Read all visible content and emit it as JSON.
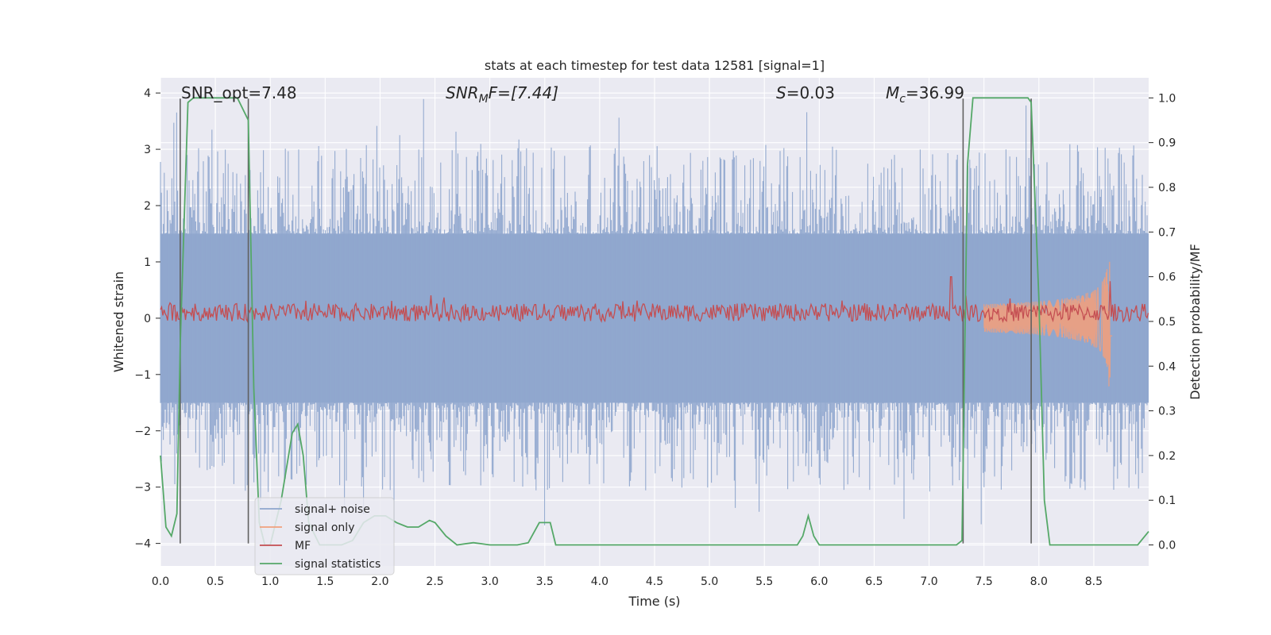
{
  "chart_data": {
    "type": "line",
    "title": "stats at each timestep for test data 12581 [signal=1]",
    "xlabel": "Time (s)",
    "ylabel": "Whitened strain",
    "y2label": "Detection probability/MF",
    "xlim": [
      0.0,
      9.0
    ],
    "ylim": [
      -4.4,
      4.27
    ],
    "y2lim": [
      -0.047,
      1.045
    ],
    "xticks": [
      "0.0",
      "0.5",
      "1.0",
      "1.5",
      "2.0",
      "2.5",
      "3.0",
      "3.5",
      "4.0",
      "4.5",
      "5.0",
      "5.5",
      "6.0",
      "6.5",
      "7.0",
      "7.5",
      "8.0",
      "8.5"
    ],
    "yticks": [
      "4",
      "3",
      "2",
      "1",
      "0",
      "−1",
      "−2",
      "−3",
      "−4"
    ],
    "y2ticks": [
      "1.0",
      "0.9",
      "0.8",
      "0.7",
      "0.6",
      "0.5",
      "0.4",
      "0.3",
      "0.2",
      "0.1",
      "0.0"
    ],
    "grid": true,
    "legend_position": "lower-left",
    "annotations": {
      "snr_opt": "SNR_opt=7.48",
      "snr_mf_main": "SNR",
      "snr_mf_sub": "M",
      "snr_mf_rest": "F=[7.44]",
      "s_main": "S",
      "s_rest": "=0.03",
      "mc_main": "M",
      "mc_sub": "c",
      "mc_rest": "=36.99"
    },
    "vertical_lines_x": [
      0.18,
      0.8,
      7.31,
      7.93
    ],
    "series": [
      {
        "name": "signal+ noise",
        "color": "#8fa6ce",
        "description_axis": "left",
        "noise_band": [
          -1.5,
          1.5
        ],
        "spike_extremes": [
          4.0,
          -4.0
        ]
      },
      {
        "name": "signal only",
        "color": "#f0a07e",
        "description_axis": "left",
        "chirp_peak_time": 8.65,
        "chirp_peak_amplitude": 1.8
      },
      {
        "name": "MF",
        "color": "#c44e52",
        "description_axis": "right",
        "baseline": 0.52,
        "spikes": [
          [
            7.2,
            0.6
          ],
          [
            8.65,
            0.59
          ]
        ]
      },
      {
        "name": "signal statistics",
        "color": "#55a868",
        "description_axis": "right",
        "x": [
          0.0,
          0.05,
          0.1,
          0.15,
          0.18,
          0.25,
          0.3,
          0.35,
          0.5,
          0.6,
          0.7,
          0.8,
          0.85,
          0.9,
          0.95,
          1.0,
          1.1,
          1.2,
          1.25,
          1.3,
          1.35,
          1.45,
          1.55,
          1.65,
          1.75,
          1.85,
          1.95,
          2.05,
          2.15,
          2.25,
          2.35,
          2.45,
          2.5,
          2.6,
          2.7,
          2.85,
          3.0,
          3.15,
          3.25,
          3.35,
          3.45,
          3.55,
          3.6,
          3.8,
          4.5,
          5.0,
          5.5,
          5.8,
          5.85,
          5.9,
          5.95,
          6.0,
          6.5,
          7.0,
          7.25,
          7.3,
          7.35,
          7.4,
          7.6,
          7.8,
          7.9,
          7.93,
          8.0,
          8.05,
          8.1,
          8.2,
          8.5,
          8.9,
          9.0
        ],
        "values": [
          0.2,
          0.04,
          0.02,
          0.07,
          0.45,
          0.99,
          1.0,
          1.0,
          1.0,
          1.0,
          1.0,
          0.95,
          0.35,
          0.05,
          0.0,
          0.0,
          0.1,
          0.25,
          0.27,
          0.2,
          0.05,
          0.0,
          0.0,
          0.0,
          0.01,
          0.05,
          0.065,
          0.065,
          0.05,
          0.04,
          0.04,
          0.055,
          0.05,
          0.02,
          0.0,
          0.005,
          0.0,
          0.0,
          0.0,
          0.005,
          0.05,
          0.05,
          0.0,
          0.0,
          0.0,
          0.0,
          0.0,
          0.0,
          0.02,
          0.065,
          0.02,
          0.0,
          0.0,
          0.0,
          0.0,
          0.01,
          0.85,
          1.0,
          1.0,
          1.0,
          1.0,
          0.99,
          0.55,
          0.1,
          0.0,
          0.0,
          0.0,
          0.0,
          0.03
        ]
      }
    ],
    "legend": [
      "signal+ noise",
      "signal only",
      "MF",
      "signal statistics"
    ]
  }
}
